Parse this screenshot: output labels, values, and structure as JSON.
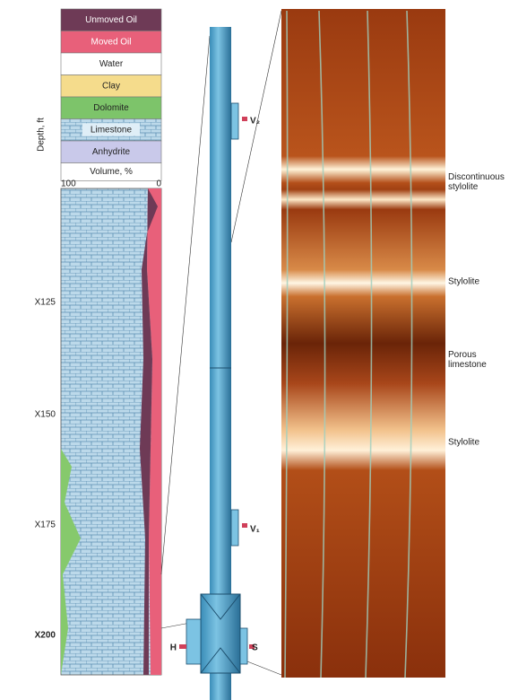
{
  "legend": {
    "items": [
      "Unmoved Oil",
      "Moved Oil",
      "Water",
      "Clay",
      "Dolomite",
      "Limestone",
      "Anhydrite",
      "Volume, %"
    ],
    "scale_left": "100",
    "scale_right": "0"
  },
  "depth_axis": {
    "title": "Depth, ft",
    "labels": [
      "X125",
      "X150",
      "X175",
      "X200"
    ]
  },
  "tool": {
    "labels": [
      "V₂",
      "V₁",
      "H",
      "S"
    ]
  },
  "image": {
    "annotations": [
      "Discontinuous\nstylolite",
      "Stylolite",
      "Porous\nlimestone",
      "Stylolite"
    ]
  }
}
